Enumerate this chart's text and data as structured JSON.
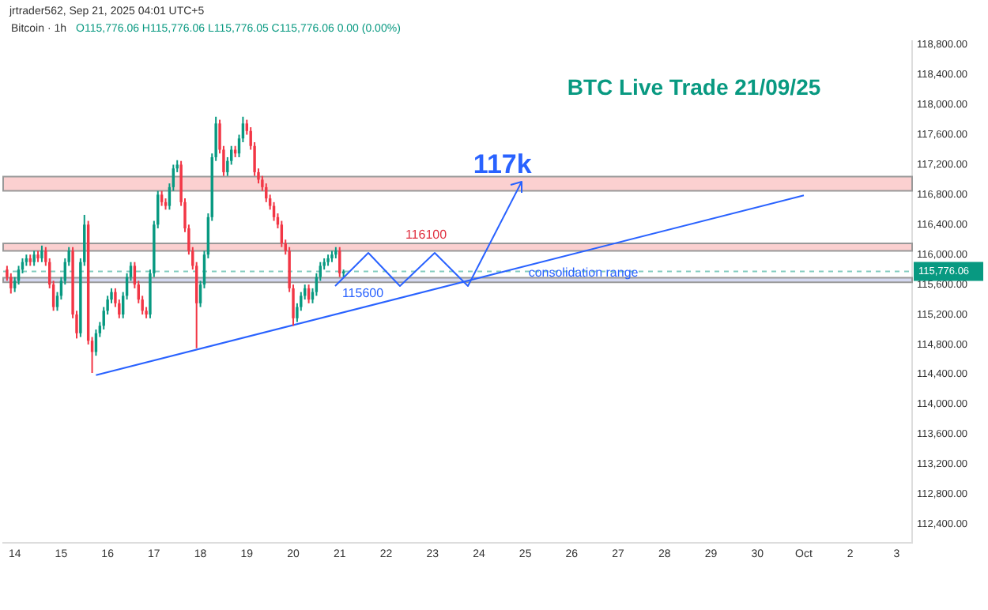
{
  "chart_data": {
    "type": "candlestick",
    "title": "BTC Live Trade 21/09/25",
    "annotations": [
      "jrtrader562, Sep 21, 2025 04:01 UTC+5",
      "Bitcoin · 1h",
      "O115,776.06 H115,776.06 L115,776.05 C115,776.06 0.00 (0.00%)",
      {
        "text": "117k",
        "x": "2025-09-24T22:00",
        "y": 117000
      },
      {
        "text": "consolidation range",
        "x": "2025-09-26T06:00",
        "y": 115750
      }
    ],
    "x": [
      "2025-09-13T20:00",
      "2025-09-13T22:00",
      "2025-09-14T00:00",
      "2025-09-14T02:00",
      "2025-09-14T04:00",
      "2025-09-14T06:00",
      "2025-09-14T08:00",
      "2025-09-14T10:00",
      "2025-09-14T12:00",
      "2025-09-14T14:00",
      "2025-09-14T16:00",
      "2025-09-14T18:00",
      "2025-09-14T20:00",
      "2025-09-14T22:00",
      "2025-09-15T00:00",
      "2025-09-15T02:00",
      "2025-09-15T04:00",
      "2025-09-15T06:00",
      "2025-09-15T08:00",
      "2025-09-15T10:00",
      "2025-09-15T12:00",
      "2025-09-15T14:00",
      "2025-09-15T16:00",
      "2025-09-15T18:00",
      "2025-09-15T20:00",
      "2025-09-15T22:00",
      "2025-09-16T00:00",
      "2025-09-16T02:00",
      "2025-09-16T04:00",
      "2025-09-16T06:00",
      "2025-09-16T08:00",
      "2025-09-16T10:00",
      "2025-09-16T12:00",
      "2025-09-16T14:00",
      "2025-09-16T16:00",
      "2025-09-16T18:00",
      "2025-09-16T20:00",
      "2025-09-16T22:00",
      "2025-09-17T00:00",
      "2025-09-17T02:00",
      "2025-09-17T04:00",
      "2025-09-17T06:00",
      "2025-09-17T08:00",
      "2025-09-17T10:00",
      "2025-09-17T12:00",
      "2025-09-17T14:00",
      "2025-09-17T16:00",
      "2025-09-17T18:00",
      "2025-09-17T20:00",
      "2025-09-17T22:00",
      "2025-09-18T00:00",
      "2025-09-18T02:00",
      "2025-09-18T04:00",
      "2025-09-18T06:00",
      "2025-09-18T08:00",
      "2025-09-18T10:00",
      "2025-09-18T12:00",
      "2025-09-18T14:00",
      "2025-09-18T16:00",
      "2025-09-18T18:00",
      "2025-09-18T20:00",
      "2025-09-18T22:00",
      "2025-09-19T00:00",
      "2025-09-19T02:00",
      "2025-09-19T04:00",
      "2025-09-19T06:00",
      "2025-09-19T08:00",
      "2025-09-19T10:00",
      "2025-09-19T12:00",
      "2025-09-19T14:00",
      "2025-09-19T16:00",
      "2025-09-19T18:00",
      "2025-09-19T20:00",
      "2025-09-19T22:00",
      "2025-09-20T00:00",
      "2025-09-20T02:00",
      "2025-09-20T04:00",
      "2025-09-20T06:00",
      "2025-09-20T08:00",
      "2025-09-20T10:00",
      "2025-09-20T12:00",
      "2025-09-20T14:00",
      "2025-09-20T16:00",
      "2025-09-20T18:00",
      "2025-09-20T20:00",
      "2025-09-20T22:00",
      "2025-09-21T00:00",
      "2025-09-21T02:00"
    ],
    "ohlc": [
      [
        115800,
        115850,
        115650,
        115700
      ],
      [
        115700,
        115750,
        115480,
        115550
      ],
      [
        115550,
        115700,
        115500,
        115650
      ],
      [
        115650,
        115850,
        115600,
        115800
      ],
      [
        115800,
        115950,
        115750,
        115900
      ],
      [
        115900,
        116000,
        115850,
        115950
      ],
      [
        115950,
        116000,
        115850,
        115900
      ],
      [
        115900,
        116050,
        115850,
        116000
      ],
      [
        116000,
        116050,
        115900,
        115950
      ],
      [
        115950,
        116120,
        115900,
        116050
      ],
      [
        116050,
        116100,
        115850,
        115900
      ],
      [
        115900,
        115950,
        115550,
        115600
      ],
      [
        115600,
        115650,
        115250,
        115300
      ],
      [
        115300,
        115500,
        115250,
        115450
      ],
      [
        115450,
        115700,
        115400,
        115650
      ],
      [
        115650,
        115950,
        115600,
        115900
      ],
      [
        115900,
        116100,
        115850,
        116050
      ],
      [
        116050,
        116100,
        115150,
        115200
      ],
      [
        115200,
        115250,
        114880,
        114950
      ],
      [
        114950,
        115950,
        114900,
        115900
      ],
      [
        115900,
        116530,
        115850,
        116400
      ],
      [
        116400,
        116450,
        114800,
        114850
      ],
      [
        114850,
        114900,
        114420,
        114700
      ],
      [
        114700,
        115000,
        114650,
        114950
      ],
      [
        114950,
        115100,
        114900,
        115050
      ],
      [
        115050,
        115300,
        115000,
        115250
      ],
      [
        115250,
        115450,
        115200,
        115400
      ],
      [
        115400,
        115550,
        115350,
        115500
      ],
      [
        115500,
        115550,
        115300,
        115350
      ],
      [
        115350,
        115400,
        115150,
        115200
      ],
      [
        115200,
        115500,
        115150,
        115450
      ],
      [
        115450,
        115750,
        115400,
        115700
      ],
      [
        115700,
        115900,
        115650,
        115850
      ],
      [
        115850,
        115900,
        115550,
        115600
      ],
      [
        115600,
        115650,
        115350,
        115400
      ],
      [
        115400,
        115450,
        115200,
        115250
      ],
      [
        115250,
        115300,
        115150,
        115200
      ],
      [
        115200,
        115800,
        115150,
        115750
      ],
      [
        115750,
        116450,
        115700,
        116400
      ],
      [
        116400,
        116850,
        116350,
        116800
      ],
      [
        116800,
        116850,
        116650,
        116700
      ],
      [
        116700,
        116750,
        116600,
        116650
      ],
      [
        116650,
        116950,
        116600,
        116900
      ],
      [
        116900,
        117200,
        116850,
        117150
      ],
      [
        117150,
        117260,
        117100,
        117200
      ],
      [
        117200,
        117250,
        116650,
        116700
      ],
      [
        116700,
        116750,
        116300,
        116350
      ],
      [
        116350,
        116400,
        116000,
        116050
      ],
      [
        116050,
        116100,
        115800,
        115850
      ],
      [
        115850,
        115900,
        114750,
        115350
      ],
      [
        115350,
        115650,
        115300,
        115600
      ],
      [
        115600,
        116050,
        115550,
        116000
      ],
      [
        116000,
        116550,
        115950,
        116500
      ],
      [
        116500,
        117350,
        116450,
        117300
      ],
      [
        117300,
        117840,
        117250,
        117750
      ],
      [
        117750,
        117800,
        117350,
        117400
      ],
      [
        117400,
        117450,
        117050,
        117100
      ],
      [
        117100,
        117300,
        117050,
        117250
      ],
      [
        117250,
        117450,
        117200,
        117400
      ],
      [
        117400,
        117450,
        117300,
        117350
      ],
      [
        117350,
        117600,
        117300,
        117550
      ],
      [
        117550,
        117840,
        117500,
        117750
      ],
      [
        117750,
        117800,
        117600,
        117650
      ],
      [
        117650,
        117700,
        117400,
        117450
      ],
      [
        117450,
        117500,
        117050,
        117100
      ],
      [
        117100,
        117150,
        116950,
        117000
      ],
      [
        117000,
        117050,
        116850,
        116900
      ],
      [
        116900,
        116950,
        116700,
        116750
      ],
      [
        116750,
        116800,
        116600,
        116650
      ],
      [
        116650,
        116700,
        116450,
        116500
      ],
      [
        116500,
        116550,
        116350,
        116400
      ],
      [
        116400,
        116450,
        116100,
        116150
      ],
      [
        116150,
        116200,
        116000,
        116050
      ],
      [
        116050,
        116100,
        115500,
        115550
      ],
      [
        115550,
        115600,
        115050,
        115150
      ],
      [
        115150,
        115350,
        115100,
        115300
      ],
      [
        115300,
        115500,
        115250,
        115450
      ],
      [
        115450,
        115600,
        115400,
        115550
      ],
      [
        115550,
        115600,
        115350,
        115400
      ],
      [
        115400,
        115550,
        115350,
        115500
      ],
      [
        115500,
        115750,
        115450,
        115700
      ],
      [
        115700,
        115900,
        115650,
        115850
      ],
      [
        115850,
        115950,
        115800,
        115900
      ],
      [
        115900,
        116000,
        115850,
        115950
      ],
      [
        115950,
        116050,
        115900,
        116000
      ],
      [
        116000,
        116100,
        115950,
        116050
      ],
      [
        116050,
        116100,
        115700,
        115750
      ],
      [
        115750,
        115800,
        115700,
        115776
      ]
    ],
    "colors": [
      "#f23645",
      "#f23645",
      "#089981",
      "#089981",
      "#089981",
      "#089981",
      "#f23645",
      "#089981",
      "#f23645",
      "#089981",
      "#f23645",
      "#f23645",
      "#f23645",
      "#089981",
      "#089981",
      "#089981",
      "#089981",
      "#f23645",
      "#f23645",
      "#089981",
      "#089981",
      "#f23645",
      "#f23645",
      "#089981",
      "#089981",
      "#089981",
      "#089981",
      "#089981",
      "#f23645",
      "#f23645",
      "#089981",
      "#089981",
      "#089981",
      "#f23645",
      "#f23645",
      "#f23645",
      "#f23645",
      "#089981",
      "#089981",
      "#089981",
      "#f23645",
      "#f23645",
      "#089981",
      "#089981",
      "#089981",
      "#f23645",
      "#f23645",
      "#f23645",
      "#f23645",
      "#f23645",
      "#089981",
      "#089981",
      "#089981",
      "#089981",
      "#089981",
      "#f23645",
      "#f23645",
      "#089981",
      "#089981",
      "#f23645",
      "#089981",
      "#089981",
      "#f23645",
      "#f23645",
      "#f23645",
      "#f23645",
      "#f23645",
      "#f23645",
      "#f23645",
      "#f23645",
      "#f23645",
      "#f23645",
      "#f23645",
      "#f23645",
      "#f23645",
      "#089981",
      "#089981",
      "#089981",
      "#f23645",
      "#089981",
      "#089981",
      "#089981",
      "#089981",
      "#089981",
      "#089981",
      "#089981",
      "#f23645",
      "#089981"
    ],
    "series": [
      {
        "type": "line",
        "color": "#2962ff",
        "x": [
          "2025-09-15T18:00",
          "2025-10-01T00:00"
        ],
        "values": [
          114390,
          116790
        ]
      }
    ],
    "bands": [
      {
        "axis": "y",
        "from": 116850,
        "to": 117040,
        "color": "#f7a9a9"
      },
      {
        "axis": "y",
        "from": 116050,
        "to": 116150,
        "label": "116100",
        "color": "#f7a9a9"
      },
      {
        "axis": "y",
        "from": 115630,
        "to": 115690,
        "label": "115600",
        "color": "#b3b9e6"
      }
    ],
    "ref_lines": [
      {
        "axis": "y",
        "value": 115776.06,
        "label": "115,776.06",
        "color": "#089981",
        "line_style": "dashed"
      }
    ],
    "xlim": [
      "2025-09-13T18:00",
      "2025-10-03T08:00"
    ],
    "xticks": [
      {
        "value": "2025-09-14T00:00",
        "label": "14"
      },
      {
        "value": "2025-09-15T00:00",
        "label": "15"
      },
      {
        "value": "2025-09-16T00:00",
        "label": "16"
      },
      {
        "value": "2025-09-17T00:00",
        "label": "17"
      },
      {
        "value": "2025-09-18T00:00",
        "label": "18"
      },
      {
        "value": "2025-09-19T00:00",
        "label": "19"
      },
      {
        "value": "2025-09-20T00:00",
        "label": "20"
      },
      {
        "value": "2025-09-21T00:00",
        "label": "21"
      },
      {
        "value": "2025-09-22T00:00",
        "label": "22"
      },
      {
        "value": "2025-09-23T00:00",
        "label": "23"
      },
      {
        "value": "2025-09-24T00:00",
        "label": "24"
      },
      {
        "value": "2025-09-25T00:00",
        "label": "25"
      },
      {
        "value": "2025-09-26T00:00",
        "label": "26"
      },
      {
        "value": "2025-09-27T00:00",
        "label": "27"
      },
      {
        "value": "2025-09-28T00:00",
        "label": "28"
      },
      {
        "value": "2025-09-29T00:00",
        "label": "29"
      },
      {
        "value": "2025-09-30T00:00",
        "label": "30"
      },
      {
        "value": "2025-10-01T00:00",
        "label": "Oct"
      },
      {
        "value": "2025-10-02T00:00",
        "label": "2"
      },
      {
        "value": "2025-10-03T00:00",
        "label": "3"
      }
    ],
    "ylim": [
      112150,
      118850
    ],
    "yticks": [
      {
        "value": 112400,
        "label": "112,400.00"
      },
      {
        "value": 112800,
        "label": "112,800.00"
      },
      {
        "value": 113200,
        "label": "113,200.00"
      },
      {
        "value": 113600,
        "label": "113,600.00"
      },
      {
        "value": 114000,
        "label": "114,000.00"
      },
      {
        "value": 114400,
        "label": "114,400.00"
      },
      {
        "value": 114800,
        "label": "114,800.00"
      },
      {
        "value": 115200,
        "label": "115,200.00"
      },
      {
        "value": 115600,
        "label": "115,600.00"
      },
      {
        "value": 116000,
        "label": "116,000.00"
      },
      {
        "value": 116400,
        "label": "116,400.00"
      },
      {
        "value": 116800,
        "label": "116,800.00"
      },
      {
        "value": 117200,
        "label": "117,200.00"
      },
      {
        "value": 117600,
        "label": "117,600.00"
      },
      {
        "value": 118000,
        "label": "118,000.00"
      },
      {
        "value": 118400,
        "label": "118,400.00"
      },
      {
        "value": 118800,
        "label": "118,800.00"
      }
    ],
    "grid": false,
    "legend": false
  }
}
